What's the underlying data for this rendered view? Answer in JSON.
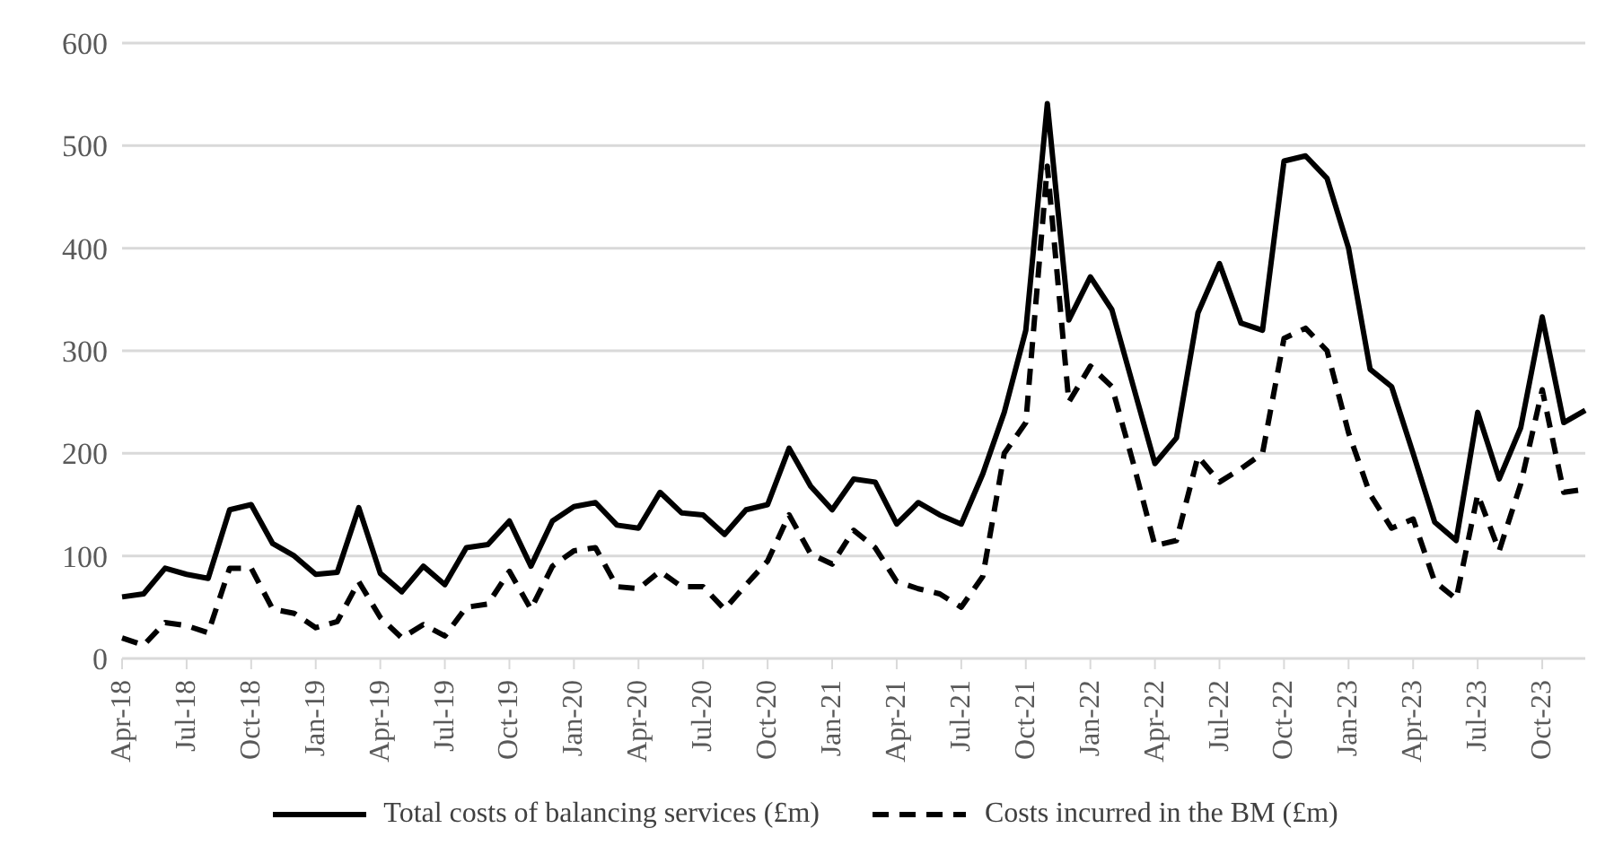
{
  "chart_data": {
    "type": "line",
    "categories": [
      "Apr-18",
      null,
      null,
      "Jul-18",
      null,
      null,
      "Oct-18",
      null,
      null,
      "Jan-19",
      null,
      null,
      "Apr-19",
      null,
      null,
      "Jul-19",
      null,
      null,
      "Oct-19",
      null,
      null,
      "Jan-20",
      null,
      null,
      "Apr-20",
      null,
      null,
      "Jul-20",
      null,
      null,
      "Oct-20",
      null,
      null,
      "Jan-21",
      null,
      null,
      "Apr-21",
      null,
      null,
      "Jul-21",
      null,
      null,
      "Oct-21",
      null,
      null,
      "Jan-22",
      null,
      null,
      "Apr-22",
      null,
      null,
      "Jul-22",
      null,
      null,
      "Oct-22",
      null,
      null,
      "Jan-23",
      null,
      null,
      "Apr-23",
      null,
      null,
      "Jul-23",
      null,
      null,
      "Oct-23",
      null,
      null
    ],
    "series": [
      {
        "name": "Total costs of balancing services (£m)",
        "color": "#000000",
        "line_style": "solid",
        "values": [
          60,
          63,
          88,
          82,
          78,
          145,
          150,
          112,
          100,
          82,
          84,
          147,
          83,
          65,
          90,
          72,
          108,
          111,
          134,
          90,
          134,
          148,
          152,
          130,
          127,
          162,
          142,
          140,
          121,
          145,
          150,
          205,
          168,
          145,
          175,
          172,
          131,
          152,
          140,
          131,
          180,
          240,
          320,
          541,
          330,
          372,
          340,
          265,
          190,
          215,
          337,
          385,
          327,
          320,
          485,
          490,
          468,
          400,
          282,
          265,
          200,
          133,
          115,
          240,
          175,
          225,
          333,
          230,
          242
        ]
      },
      {
        "name": "Costs incurred in the BM (£m)",
        "color": "#000000",
        "line_style": "dashed",
        "values": [
          20,
          13,
          35,
          32,
          25,
          88,
          88,
          48,
          44,
          30,
          36,
          75,
          40,
          20,
          33,
          22,
          50,
          53,
          85,
          48,
          90,
          105,
          108,
          70,
          68,
          85,
          70,
          70,
          48,
          72,
          95,
          140,
          102,
          92,
          125,
          108,
          75,
          68,
          63,
          50,
          80,
          200,
          230,
          480,
          250,
          285,
          265,
          190,
          110,
          115,
          197,
          172,
          185,
          200,
          312,
          322,
          300,
          220,
          160,
          127,
          136,
          75,
          58,
          160,
          105,
          170,
          262,
          162,
          165
        ]
      }
    ],
    "ylim": [
      0,
      600
    ],
    "yticks": [
      0,
      100,
      200,
      300,
      400,
      500,
      600
    ],
    "grid": "y",
    "legend": "bottom",
    "marker": "none"
  }
}
